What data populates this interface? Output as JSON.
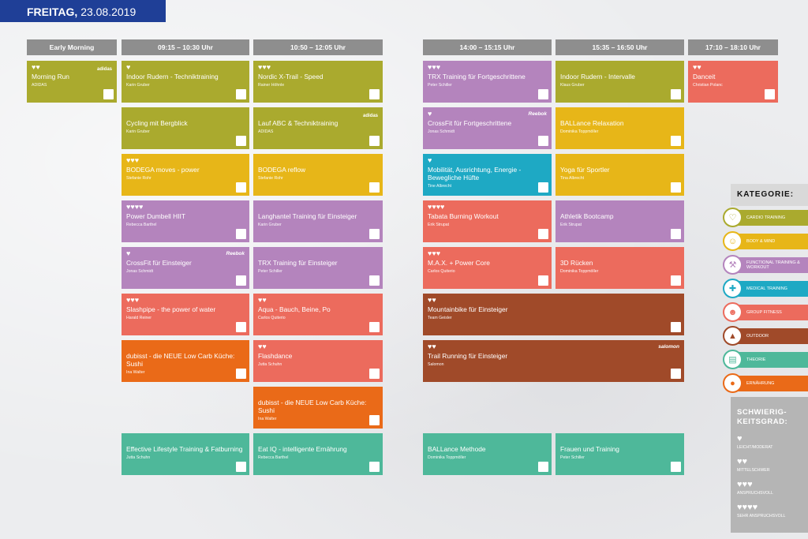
{
  "header": {
    "day": "FREITAG,",
    "date": "23.08.2019"
  },
  "columns": [
    "Early Morning",
    "09:15 – 10:30 Uhr",
    "10:50 – 12:05 Uhr",
    "14:00 – 15:15 Uhr",
    "15:35 – 16:50 Uhr",
    "17:10 – 18:10 Uhr"
  ],
  "colors": {
    "cardio": "#aaaa2e",
    "body_mind": "#e7b618",
    "functional": "#b484bd",
    "medical": "#1ea9c4",
    "group": "#ec6b5d",
    "outdoor": "#a04a29",
    "theorie": "#4eb89a",
    "ernaehrung": "#ea6a18"
  },
  "cards": [
    {
      "hearts": "♥♥",
      "title": "Morning Run",
      "sub": "ADIDAS",
      "cat": "cardio",
      "brand": "adidas"
    },
    {
      "hearts": "♥",
      "title": "Indoor Rudern - Techniktraining",
      "sub": "Karin Gruber",
      "cat": "cardio"
    },
    {
      "hearts": "",
      "title": "Cycling mit Bergblick",
      "sub": "Karin Gruber",
      "cat": "cardio"
    },
    {
      "hearts": "♥♥♥",
      "title": "BODEGA moves - power",
      "sub": "Stefanie Rohr",
      "cat": "body_mind"
    },
    {
      "hearts": "♥♥♥♥",
      "title": "Power Dumbell HIIT",
      "sub": "Rebecca Barthel",
      "cat": "functional"
    },
    {
      "hearts": "♥",
      "title": "CrossFit für Einsteiger",
      "sub": "Jonas Schmidt",
      "cat": "functional",
      "brand": "Reebok"
    },
    {
      "hearts": "♥♥♥",
      "title": "Slashpipe - the power of water",
      "sub": "Harald Reiner",
      "cat": "group"
    },
    {
      "hearts": "",
      "title": "dubisst - die NEUE Low Carb Küche: Sushi",
      "sub": "Ina Walter",
      "cat": "ernaehrung"
    },
    {
      "hearts": "",
      "title": "Effective Lifestyle Training & Fatburning",
      "sub": "Jutta Schuhn",
      "cat": "theorie"
    },
    {
      "hearts": "♥♥♥",
      "title": "Nordic X-Trail - Speed",
      "sub": "Rainer Höhnle",
      "cat": "cardio"
    },
    {
      "hearts": "",
      "title": "Lauf ABC & Techniktraining",
      "sub": "ADIDAS",
      "cat": "cardio",
      "brand": "adidas"
    },
    {
      "hearts": "",
      "title": "BODEGA reflow",
      "sub": "Stefanie Rohr",
      "cat": "body_mind"
    },
    {
      "hearts": "",
      "title": "Langhantel Training für Einsteiger",
      "sub": "Karin Gruber",
      "cat": "functional"
    },
    {
      "hearts": "",
      "title": "TRX Training für Einsteiger",
      "sub": "Peter Schiller",
      "cat": "functional"
    },
    {
      "hearts": "♥♥",
      "title": "Aqua - Bauch, Beine, Po",
      "sub": "Carlos Quiterio",
      "cat": "group"
    },
    {
      "hearts": "♥♥",
      "title": "Flashdance",
      "sub": "Jutta Schuhn",
      "cat": "group"
    },
    {
      "hearts": "",
      "title": "dubisst - die NEUE Low Carb Küche: Sushi",
      "sub": "Ina Walter",
      "cat": "ernaehrung"
    },
    {
      "hearts": "",
      "title": "Eat IQ - intelligente Ernährung",
      "sub": "Rebecca Barthel",
      "cat": "theorie"
    },
    {
      "hearts": "♥♥♥",
      "title": "TRX Training für Fortgeschrittene",
      "sub": "Peter Schiller",
      "cat": "functional"
    },
    {
      "hearts": "♥",
      "title": "CrossFit für Fortgeschrittene",
      "sub": "Jonas Schmidt",
      "cat": "functional",
      "brand": "Reebok"
    },
    {
      "hearts": "♥",
      "title": "Mobilität, Ausrichtung, Energie - Bewegliche Hüfte",
      "sub": "Tine Albrecht",
      "cat": "medical"
    },
    {
      "hearts": "♥♥♥♥",
      "title": "Tabata Burning Workout",
      "sub": "Erik Strupat",
      "cat": "group"
    },
    {
      "hearts": "♥♥♥",
      "title": "M.A.X. + Power Core",
      "sub": "Carlos Quiterio",
      "cat": "group"
    },
    {
      "hearts": "♥♥",
      "title": "Mountainbike für Einsteiger",
      "sub": "Team Geisler",
      "cat": "outdoor"
    },
    {
      "hearts": "♥♥",
      "title": "Trail Running für Einsteiger",
      "sub": "Salomon",
      "cat": "outdoor",
      "brand": "salomon"
    },
    {
      "hearts": "",
      "title": "BALLance Methode",
      "sub": "Dominika Toppmöller",
      "cat": "theorie"
    },
    {
      "hearts": "",
      "title": "Indoor Rudern - Intervalle",
      "sub": "Klaus Gruber",
      "cat": "cardio"
    },
    {
      "hearts": "",
      "title": "BALLance Relaxation",
      "sub": "Dominika Toppmöller",
      "cat": "body_mind"
    },
    {
      "hearts": "",
      "title": "Yoga für Sportler",
      "sub": "Tina Albrecht",
      "cat": "body_mind"
    },
    {
      "hearts": "",
      "title": "Athletik Bootcamp",
      "sub": "Erik Strupat",
      "cat": "functional"
    },
    {
      "hearts": "",
      "title": "3D Rücken",
      "sub": "Dominika Toppmöller",
      "cat": "group"
    },
    {
      "hearts": "",
      "title": "Frauen und Training",
      "sub": "Peter Schiller",
      "cat": "theorie"
    },
    {
      "hearts": "♥♥",
      "title": "Danceit",
      "sub": "Christian Polanc",
      "cat": "group"
    }
  ],
  "legend": {
    "title": "KATEGORIE:",
    "categories": [
      {
        "key": "cardio",
        "label": "CARDIO TRAINING",
        "icon": "heart-rate-icon"
      },
      {
        "key": "body_mind",
        "label": "BODY & MIND",
        "icon": "meditation-icon"
      },
      {
        "key": "functional",
        "label": "FUNCTIONAL TRAINING & WORKOUT",
        "icon": "dumbbell-icon"
      },
      {
        "key": "medical",
        "label": "MEDICAL TRAINING",
        "icon": "medical-cross-icon"
      },
      {
        "key": "group",
        "label": "GROUP FITNESS",
        "icon": "group-icon"
      },
      {
        "key": "outdoor",
        "label": "OUTDOOR",
        "icon": "mountain-icon"
      },
      {
        "key": "theorie",
        "label": "THEORIE",
        "icon": "book-icon"
      },
      {
        "key": "ernaehrung",
        "label": "ERNÄHRUNG",
        "icon": "food-icon"
      }
    ],
    "difficulty_title": "SCHWIERIG-KEITSGRAD:",
    "difficulty": [
      {
        "hearts": "♥",
        "label": "LEICHT/MODERAT"
      },
      {
        "hearts": "♥♥",
        "label": "MITTELSCHWER"
      },
      {
        "hearts": "♥♥♥",
        "label": "ANSPRUCHSVOLL"
      },
      {
        "hearts": "♥♥♥♥",
        "label": "SEHR ANSPRUCHSVOLL"
      }
    ]
  }
}
